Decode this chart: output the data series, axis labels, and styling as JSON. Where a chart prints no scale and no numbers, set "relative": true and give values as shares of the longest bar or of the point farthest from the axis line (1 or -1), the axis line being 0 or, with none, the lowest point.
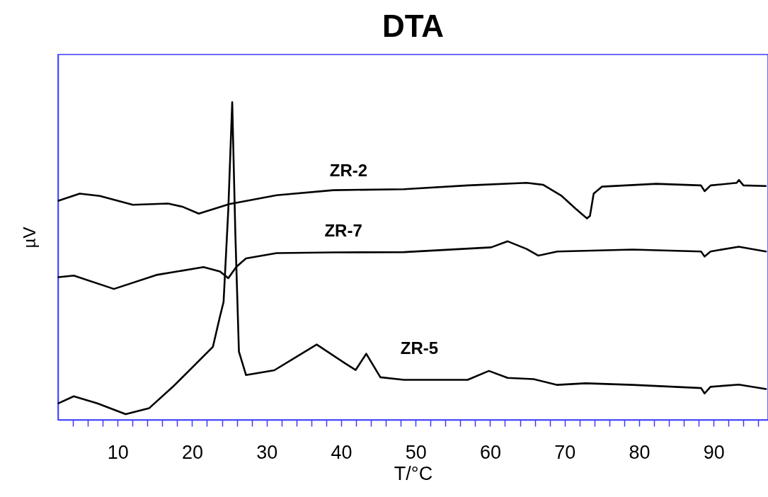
{
  "chart_data": {
    "type": "line",
    "title": "DTA",
    "xlabel": "T/°C",
    "ylabel": "µV",
    "relative": true,
    "grid": false,
    "legend": false,
    "marker": "none",
    "line_style": "solid",
    "xlim": [
      2,
      97.3
    ],
    "xticks": [
      {
        "value": 4,
        "label": null
      },
      {
        "value": 6,
        "label": null
      },
      {
        "value": 8,
        "label": null
      },
      10,
      {
        "value": 12,
        "label": null
      },
      {
        "value": 14,
        "label": null
      },
      {
        "value": 16,
        "label": null
      },
      {
        "value": 18,
        "label": null
      },
      20,
      {
        "value": 22,
        "label": null
      },
      {
        "value": 24,
        "label": null
      },
      {
        "value": 26,
        "label": null
      },
      {
        "value": 28,
        "label": null
      },
      30,
      {
        "value": 32,
        "label": null
      },
      {
        "value": 34,
        "label": null
      },
      {
        "value": 36,
        "label": null
      },
      {
        "value": 38,
        "label": null
      },
      40,
      {
        "value": 42,
        "label": null
      },
      {
        "value": 44,
        "label": null
      },
      {
        "value": 46,
        "label": null
      },
      {
        "value": 48,
        "label": null
      },
      50,
      {
        "value": 52,
        "label": null
      },
      {
        "value": 54,
        "label": null
      },
      {
        "value": 56,
        "label": null
      },
      {
        "value": 58,
        "label": null
      },
      60,
      {
        "value": 62,
        "label": null
      },
      {
        "value": 64,
        "label": null
      },
      {
        "value": 66,
        "label": null
      },
      {
        "value": 68,
        "label": null
      },
      70,
      {
        "value": 72,
        "label": null
      },
      {
        "value": 74,
        "label": null
      },
      {
        "value": 76,
        "label": null
      },
      {
        "value": 78,
        "label": null
      },
      80,
      {
        "value": 82,
        "label": null
      },
      {
        "value": 84,
        "label": null
      },
      {
        "value": 86,
        "label": null
      },
      {
        "value": 88,
        "label": null
      },
      90,
      {
        "value": 92,
        "label": null
      },
      {
        "value": 94,
        "label": null
      },
      {
        "value": 96,
        "label": null
      }
    ],
    "series": [
      {
        "name": "ZR-2",
        "color": "#000000",
        "x": [
          2.06,
          4.91,
          7.6,
          12.03,
          16.78,
          18.68,
          20.89,
          25.0,
          31.34,
          38.94,
          48.43,
          57.0,
          64.9,
          67.1,
          69.6,
          71.5,
          73.0,
          73.4,
          73.9,
          75.0,
          82.3,
          88.3,
          88.8,
          89.6,
          93.1,
          93.4,
          94.0,
          97.0
        ],
        "values": [
          0.69,
          0.712,
          0.705,
          0.677,
          0.681,
          0.671,
          0.649,
          0.679,
          0.707,
          0.723,
          0.726,
          0.738,
          0.746,
          0.74,
          0.705,
          0.664,
          0.634,
          0.642,
          0.712,
          0.734,
          0.743,
          0.738,
          0.72,
          0.738,
          0.746,
          0.755,
          0.738,
          0.736
        ]
      },
      {
        "name": "ZR-7",
        "color": "#000000",
        "x": [
          2.06,
          4.11,
          9.5,
          15.19,
          21.53,
          23.74,
          24.85,
          25.95,
          27.23,
          31.34,
          38.94,
          48.43,
          60.14,
          62.36,
          64.89,
          66.48,
          69.01,
          79.14,
          88.32,
          88.79,
          89.58,
          93.38,
          97.03
        ],
        "values": [
          0.449,
          0.454,
          0.412,
          0.456,
          0.481,
          0.467,
          0.446,
          0.482,
          0.508,
          0.525,
          0.527,
          0.528,
          0.543,
          0.562,
          0.538,
          0.517,
          0.53,
          0.536,
          0.53,
          0.514,
          0.53,
          0.545,
          0.53
        ]
      },
      {
        "name": "ZR-5",
        "color": "#000000",
        "x": [
          2.06,
          4.11,
          7.28,
          11.08,
          14.25,
          17.41,
          19.94,
          22.79,
          23.74,
          24.22,
          24.85,
          25.38,
          25.8,
          26.28,
          27.23,
          31.03,
          36.72,
          40.52,
          41.95,
          43.37,
          45.27,
          48.43,
          56.98,
          59.83,
          62.36,
          65.84,
          69.01,
          72.81,
          79.14,
          88.32,
          88.79,
          89.58,
          93.38,
          97.03
        ],
        "values": [
          0.052,
          0.074,
          0.052,
          0.018,
          0.037,
          0.104,
          0.163,
          0.23,
          0.326,
          0.371,
          0.66,
          1.0,
          0.586,
          0.215,
          0.141,
          0.156,
          0.237,
          0.178,
          0.157,
          0.208,
          0.134,
          0.126,
          0.126,
          0.154,
          0.132,
          0.128,
          0.11,
          0.115,
          0.11,
          0.1,
          0.083,
          0.104,
          0.111,
          0.097
        ]
      }
    ]
  }
}
